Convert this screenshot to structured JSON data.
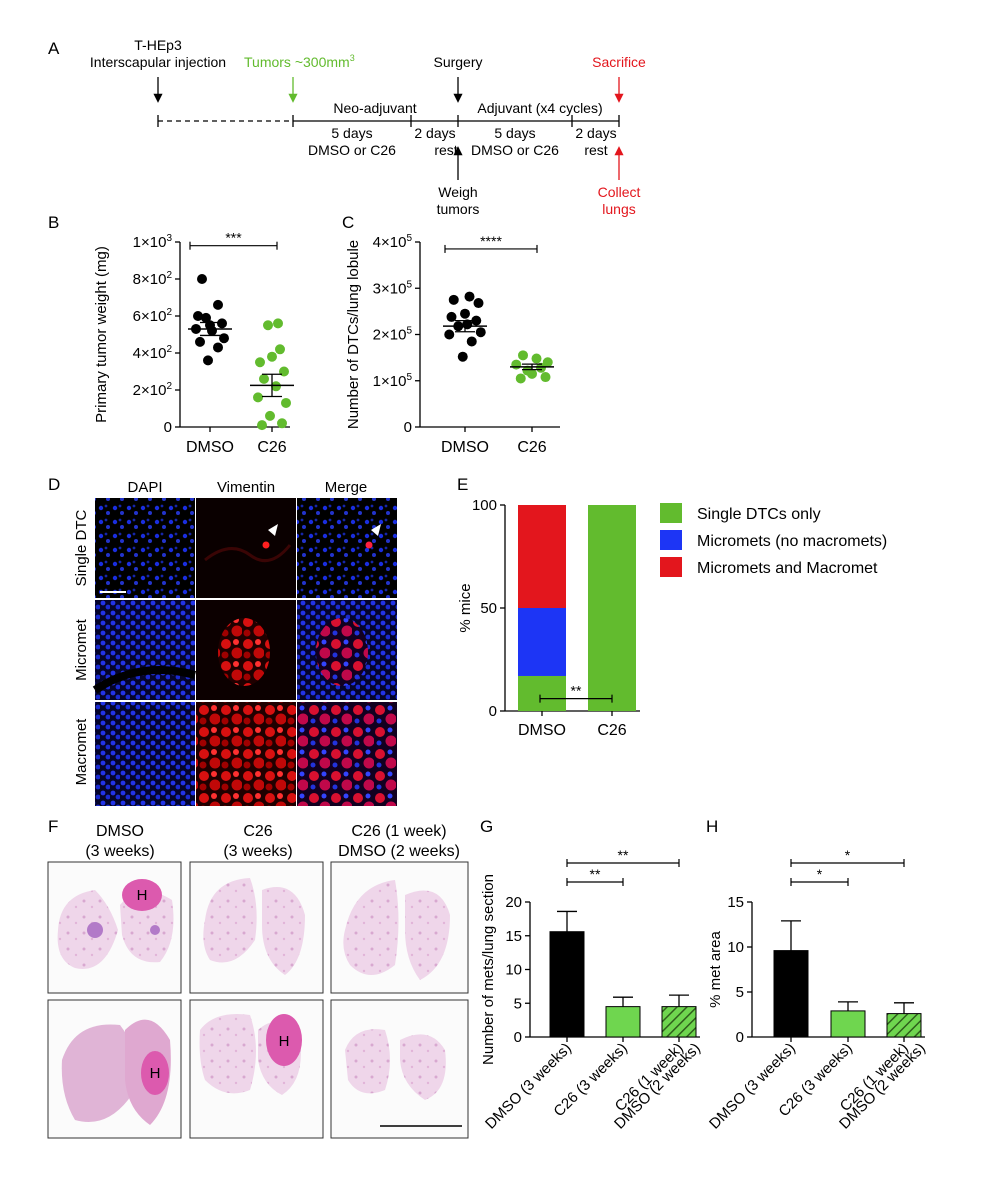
{
  "panel_letters": [
    "A",
    "B",
    "C",
    "D",
    "E",
    "F",
    "G",
    "H"
  ],
  "colors": {
    "black": "#000000",
    "green": "#62bb2e",
    "red": "#e3161d",
    "blue": "#1d35f5",
    "light_green": "#6fd64f",
    "hatch_green": "#3a7a22",
    "dapi_blue": "#1a2ee0",
    "vimentin_red": "#e01010",
    "he_pink": "#d95aae"
  },
  "timeline": {
    "injection": "T-HEp3",
    "injection_2": "Interscapular injection",
    "tumors": "Tumors ~300mm",
    "tumors_sup": "3",
    "surgery": "Surgery",
    "sacrifice": "Sacrifice",
    "neoadjuvant": "Neo-adjuvant",
    "adjuvant": "Adjuvant (x4 cycles)",
    "five_days": "5 days",
    "dmso_or_c26": "DMSO or C26",
    "two_days": "2 days",
    "rest": "rest",
    "weigh": "Weigh",
    "tumors_word": "tumors",
    "collect": "Collect",
    "lungs": "lungs"
  },
  "microscopy": {
    "columns": [
      "DAPI",
      "Vimentin",
      "Merge"
    ],
    "rows": [
      "Single DTC",
      "Micromet",
      "Macromet"
    ]
  },
  "histology": {
    "col1_title": "DMSO",
    "col1_sub": "(3 weeks)",
    "col2_title": "C26",
    "col2_sub": "(3 weeks)",
    "col3_title": "C26 (1 week)",
    "col3_sub": "DMSO (2 weeks)",
    "heart_label": "H"
  },
  "chart_data": [
    {
      "panel": "B",
      "type": "scatter",
      "ylabel": "Primary tumor weight (mg)",
      "categories": [
        "DMSO",
        "C26"
      ],
      "ylim": [
        0,
        1000
      ],
      "y_ticks": [
        {
          "value": 0,
          "label": "0"
        },
        {
          "value": 200,
          "label": "2×10",
          "exp": "2"
        },
        {
          "value": 400,
          "label": "4×10",
          "exp": "2"
        },
        {
          "value": 600,
          "label": "6×10",
          "exp": "2"
        },
        {
          "value": 800,
          "label": "8×10",
          "exp": "2"
        },
        {
          "value": 1000,
          "label": "1×10",
          "exp": "3"
        }
      ],
      "series": [
        {
          "category": "DMSO",
          "color": "#000000",
          "mean": 530,
          "sem": 35,
          "points": [
            [
              -0.2,
              800
            ],
            [
              0.2,
              660
            ],
            [
              -0.3,
              600
            ],
            [
              -0.1,
              590
            ],
            [
              0.3,
              560
            ],
            [
              0,
              550
            ],
            [
              -0.35,
              530
            ],
            [
              0.05,
              520
            ],
            [
              0.35,
              480
            ],
            [
              -0.25,
              460
            ],
            [
              0.2,
              430
            ],
            [
              -0.05,
              360
            ]
          ]
        },
        {
          "category": "C26",
          "color": "#62bb2e",
          "mean": 225,
          "sem": 60,
          "points": [
            [
              0.15,
              560
            ],
            [
              -0.1,
              550
            ],
            [
              0.2,
              420
            ],
            [
              0.0,
              380
            ],
            [
              -0.3,
              350
            ],
            [
              0.3,
              300
            ],
            [
              -0.2,
              260
            ],
            [
              0.1,
              220
            ],
            [
              -0.35,
              160
            ],
            [
              0.35,
              130
            ],
            [
              -0.05,
              60
            ],
            [
              0.25,
              20
            ],
            [
              -0.25,
              10
            ]
          ]
        }
      ],
      "significance": [
        {
          "pair": [
            0,
            1
          ],
          "label": "***",
          "y": 980
        }
      ]
    },
    {
      "panel": "C",
      "type": "scatter",
      "ylabel": "Number of DTCs/lung lobule",
      "categories": [
        "DMSO",
        "C26"
      ],
      "ylim": [
        0,
        400000
      ],
      "y_ticks": [
        {
          "value": 0,
          "label": "0"
        },
        {
          "value": 100000,
          "label": "1×10",
          "exp": "5"
        },
        {
          "value": 200000,
          "label": "2×10",
          "exp": "5"
        },
        {
          "value": 300000,
          "label": "3×10",
          "exp": "5"
        },
        {
          "value": 400000,
          "label": "4×10",
          "exp": "5"
        }
      ],
      "series": [
        {
          "category": "DMSO",
          "color": "#000000",
          "mean": 218000,
          "sem": 12000,
          "points": [
            [
              0.1,
              282000
            ],
            [
              -0.25,
              275000
            ],
            [
              0.3,
              268000
            ],
            [
              0.0,
              245000
            ],
            [
              -0.3,
              238000
            ],
            [
              0.25,
              230000
            ],
            [
              0.05,
              222000
            ],
            [
              -0.15,
              218000
            ],
            [
              0.35,
              205000
            ],
            [
              -0.35,
              200000
            ],
            [
              0.15,
              185000
            ],
            [
              -0.05,
              152000
            ]
          ]
        },
        {
          "category": "C26",
          "color": "#62bb2e",
          "mean": 130000,
          "sem": 6000,
          "points": [
            [
              -0.2,
              155000
            ],
            [
              0.1,
              148000
            ],
            [
              0.35,
              140000
            ],
            [
              -0.35,
              135000
            ],
            [
              0.2,
              128000
            ],
            [
              -0.1,
              122000
            ],
            [
              0.0,
              115000
            ],
            [
              0.3,
              108000
            ],
            [
              -0.25,
              105000
            ]
          ]
        }
      ],
      "significance": [
        {
          "pair": [
            0,
            1
          ],
          "label": "****",
          "y": 385000
        }
      ]
    },
    {
      "panel": "E",
      "type": "bar",
      "stacked": true,
      "ylabel": "% mice",
      "categories": [
        "DMSO",
        "C26"
      ],
      "ylim": [
        0,
        100
      ],
      "y_ticks": [
        {
          "value": 0,
          "label": "0"
        },
        {
          "value": 50,
          "label": "50"
        },
        {
          "value": 100,
          "label": "100"
        }
      ],
      "legend_position": "top-right",
      "series": [
        {
          "name": "Single DTCs only",
          "color": "#62bb2e",
          "values": [
            17,
            100
          ]
        },
        {
          "name": "Micromets (no macromets)",
          "color": "#1d35f5",
          "values": [
            33,
            0
          ]
        },
        {
          "name": "Micromets and Macromet",
          "color": "#e3161d",
          "values": [
            50,
            0
          ]
        }
      ],
      "significance": [
        {
          "pair": [
            0,
            1
          ],
          "label": "**",
          "y": 6
        }
      ]
    },
    {
      "panel": "G",
      "type": "bar",
      "ylabel": "Number of mets/lung section",
      "categories": [
        "DMSO (3 weeks)",
        "C26 (3 weeks)",
        "C26 (1 week)\nDMSO (2 weeks)"
      ],
      "ylim": [
        0,
        20
      ],
      "y_ticks": [
        {
          "value": 0,
          "label": "0"
        },
        {
          "value": 5,
          "label": "5"
        },
        {
          "value": 10,
          "label": "10"
        },
        {
          "value": 15,
          "label": "15"
        },
        {
          "value": 20,
          "label": "20"
        }
      ],
      "values": [
        15.6,
        4.5,
        4.5
      ],
      "errors": [
        3.0,
        1.4,
        1.7
      ],
      "bar_styles": [
        "black",
        "light",
        "hatched"
      ],
      "significance": [
        {
          "pair": [
            0,
            1
          ],
          "label": "**",
          "level": 0
        },
        {
          "pair": [
            0,
            2
          ],
          "label": "**",
          "level": 1
        }
      ]
    },
    {
      "panel": "H",
      "type": "bar",
      "ylabel": "% met area",
      "categories": [
        "DMSO (3 weeks)",
        "C26 (3 weeks)",
        "C26 (1 week)\nDMSO (2 weeks)"
      ],
      "ylim": [
        0,
        15
      ],
      "y_ticks": [
        {
          "value": 0,
          "label": "0"
        },
        {
          "value": 5,
          "label": "5"
        },
        {
          "value": 10,
          "label": "10"
        },
        {
          "value": 15,
          "label": "15"
        }
      ],
      "values": [
        9.6,
        2.9,
        2.6
      ],
      "errors": [
        3.3,
        1.0,
        1.2
      ],
      "bar_styles": [
        "black",
        "light",
        "hatched"
      ],
      "significance": [
        {
          "pair": [
            0,
            1
          ],
          "label": "*",
          "level": 0
        },
        {
          "pair": [
            0,
            2
          ],
          "label": "*",
          "level": 1
        }
      ]
    }
  ]
}
